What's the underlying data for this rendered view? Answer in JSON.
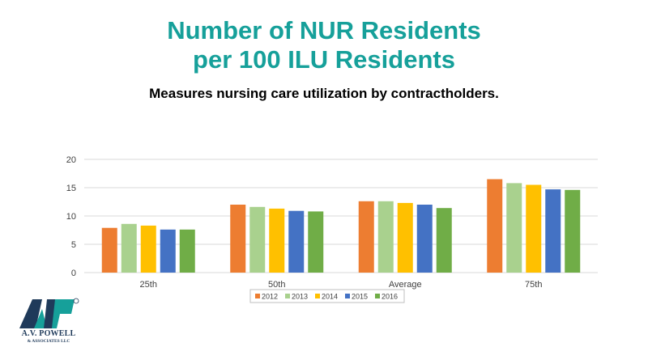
{
  "header": {
    "title_line1": "Number of NUR Residents",
    "title_line2": "per 100 ILU Residents",
    "subtitle": "Measures nursing care utilization by contractholders."
  },
  "logo": {
    "mark": "AVP",
    "name_line1": "A.V. POWELL",
    "name_line2": "& ASSOCIATES LLC"
  },
  "colors": {
    "title": "#16A09A",
    "2012": "#ED7D31",
    "2013": "#A9D18E",
    "2014": "#FFC000",
    "2015": "#4472C4",
    "2016": "#70AD47"
  },
  "chart_data": {
    "type": "bar",
    "categories": [
      "25th",
      "50th",
      "Average",
      "75th"
    ],
    "series": [
      {
        "name": "2012",
        "color": "#ED7D31",
        "values": [
          7.9,
          12.0,
          12.6,
          16.5
        ]
      },
      {
        "name": "2013",
        "color": "#A9D18E",
        "values": [
          8.6,
          11.6,
          12.6,
          15.8
        ]
      },
      {
        "name": "2014",
        "color": "#FFC000",
        "values": [
          8.3,
          11.3,
          12.3,
          15.5
        ]
      },
      {
        "name": "2015",
        "color": "#4472C4",
        "values": [
          7.6,
          10.9,
          12.0,
          14.7
        ]
      },
      {
        "name": "2016",
        "color": "#70AD47",
        "values": [
          7.6,
          10.8,
          11.4,
          14.6
        ]
      }
    ],
    "yticks": [
      0,
      5,
      10,
      15,
      20
    ],
    "ylim": [
      0,
      20
    ],
    "grid": true,
    "legend": "bottom"
  }
}
